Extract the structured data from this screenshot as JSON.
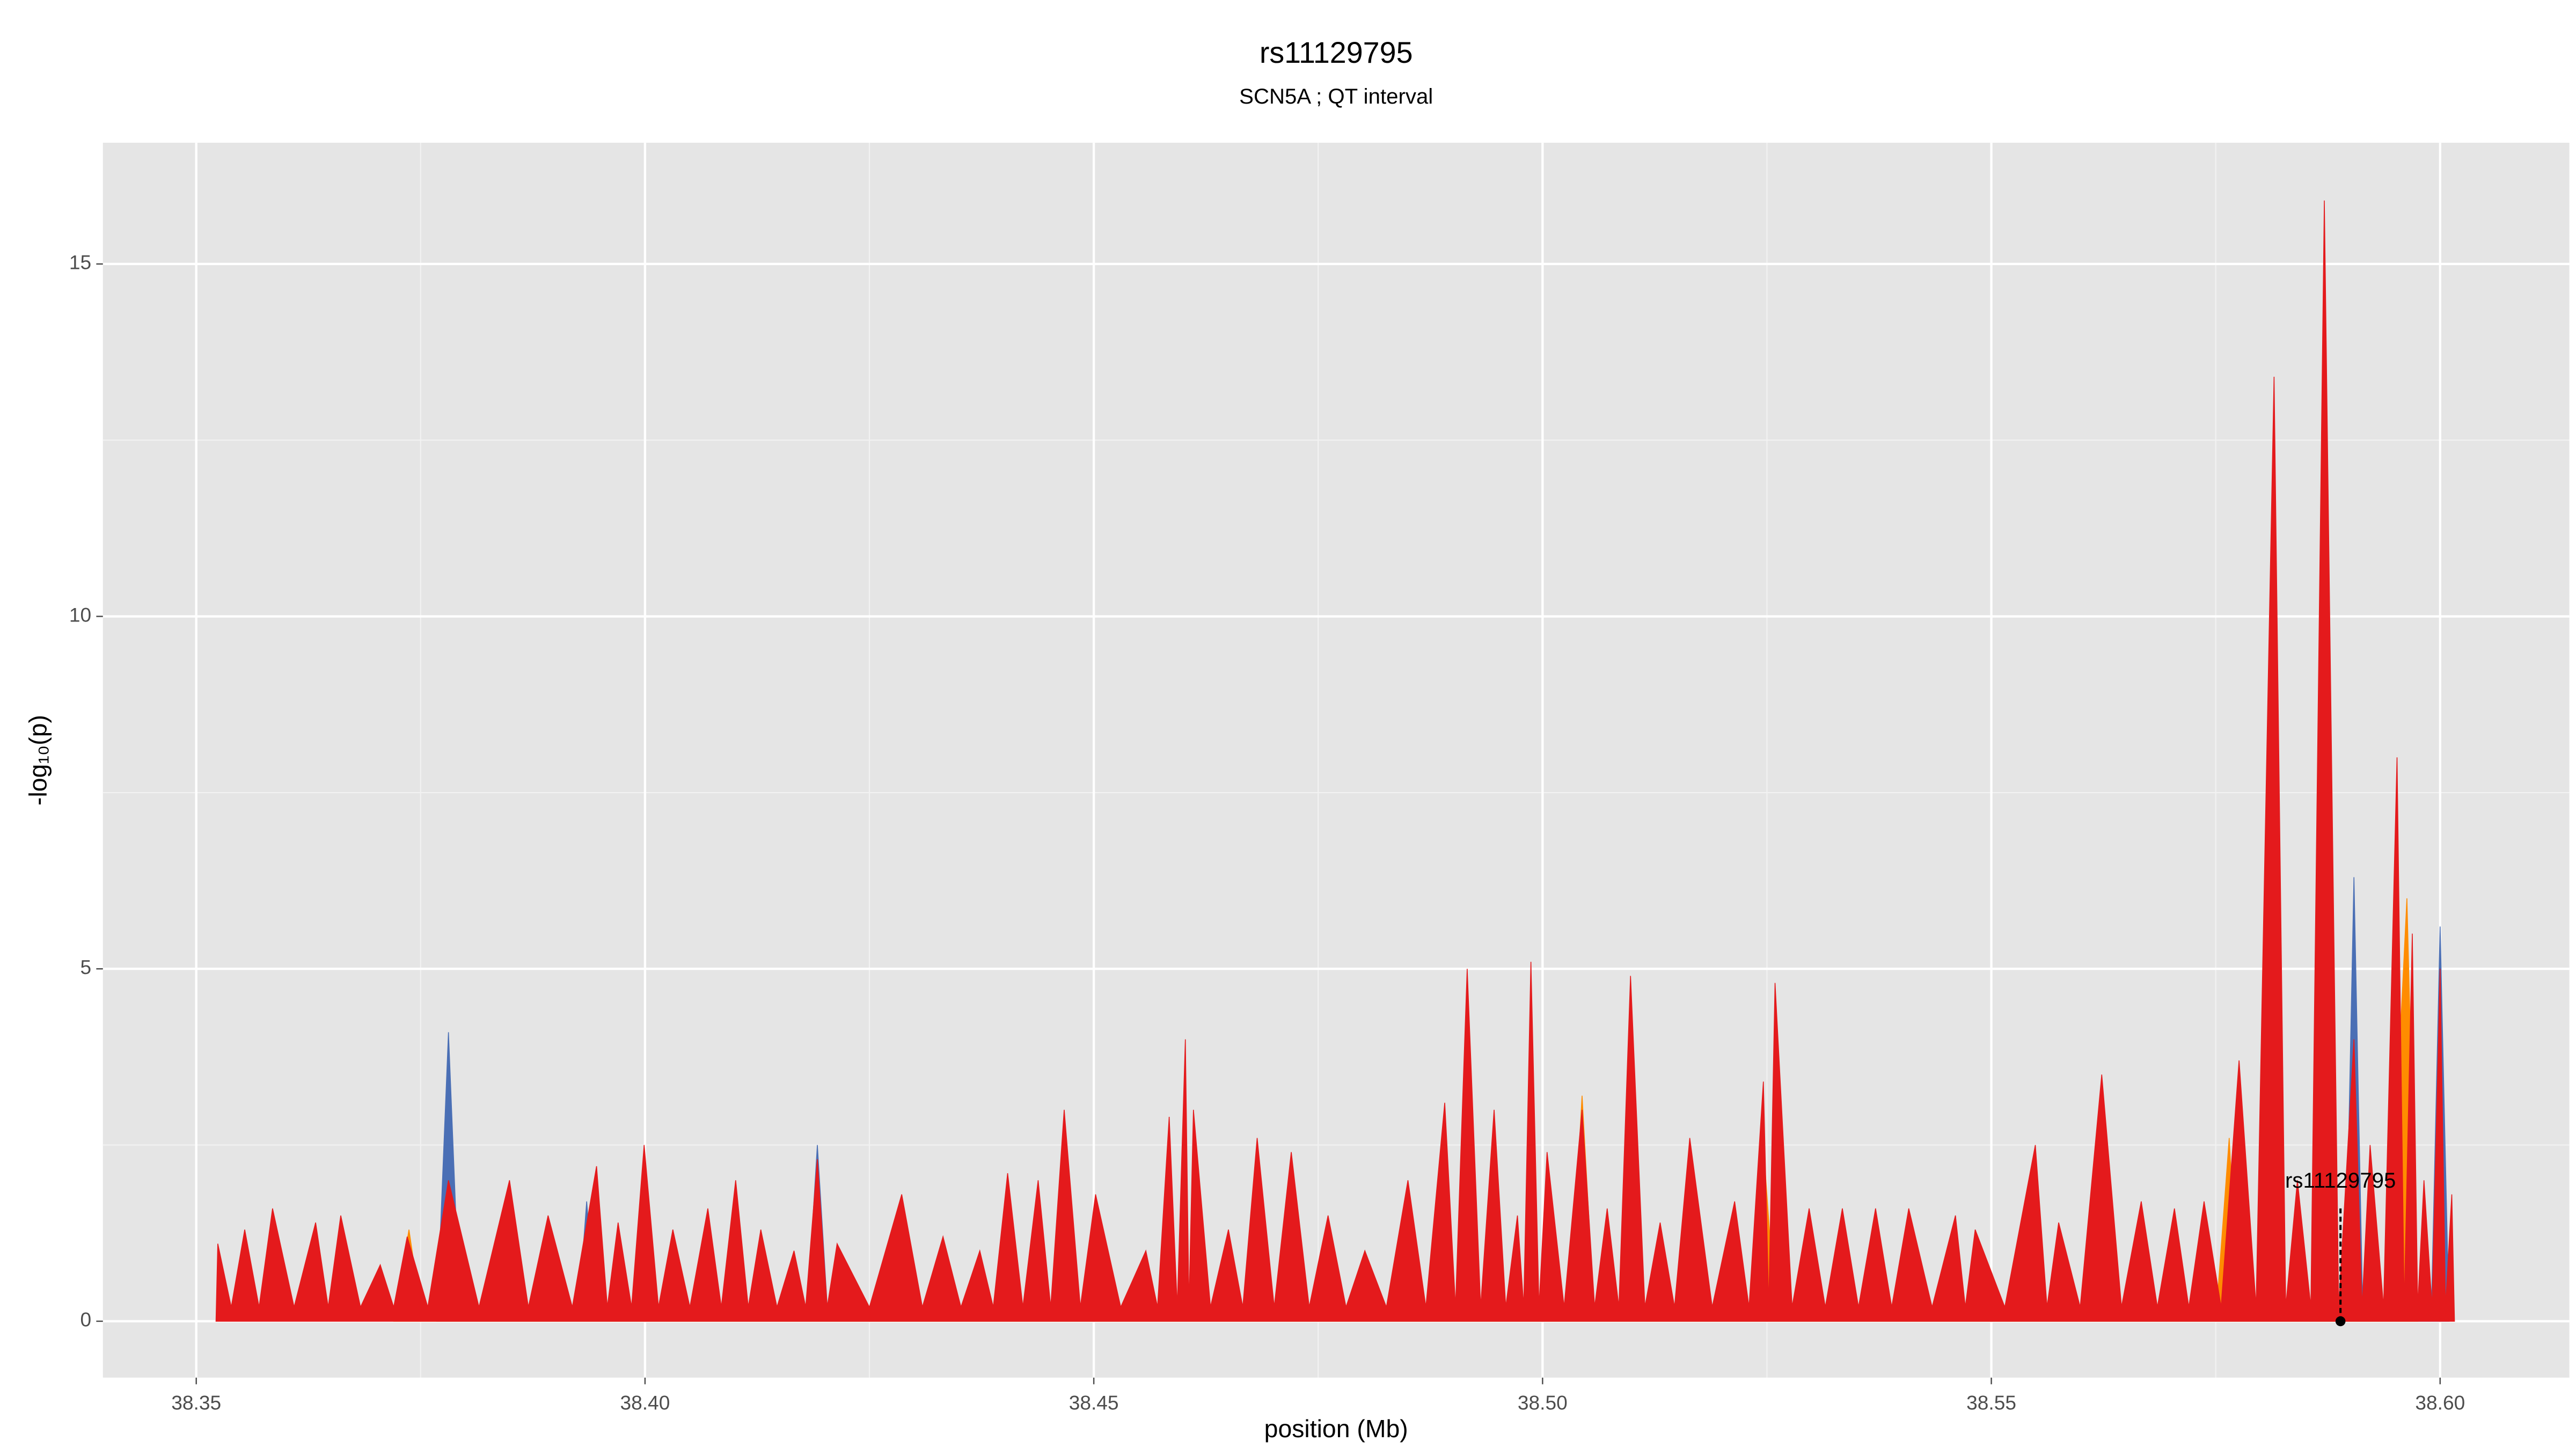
{
  "chart_data": {
    "type": "area",
    "title": "rs11129795",
    "subtitle": "SCN5A ; QT interval",
    "x_label": "position (Mb)",
    "y_label": "-log₁₀(p)",
    "xlim": [
      38.3396,
      38.6144
    ],
    "ylim": [
      -0.8,
      16.72
    ],
    "xticks": [
      {
        "value": 38.35,
        "label": "38.35"
      },
      {
        "value": 38.4,
        "label": "38.40"
      },
      {
        "value": 38.45,
        "label": "38.45"
      },
      {
        "value": 38.5,
        "label": "38.50"
      },
      {
        "value": 38.55,
        "label": "38.55"
      },
      {
        "value": 38.6,
        "label": "38.60"
      }
    ],
    "yticks": [
      0,
      5,
      10,
      15
    ],
    "x_minor_grid": [
      38.375,
      38.425,
      38.475,
      38.525,
      38.575
    ],
    "y_minor_grid": [
      2.5,
      7.5,
      12.5
    ],
    "grid": true,
    "background": "#e5e5e5",
    "series": [
      {
        "color": "#4a6fb5",
        "x": [
          38.3768,
          38.3781,
          38.3794,
          38.3925,
          38.3935,
          38.3945,
          38.418,
          38.4192,
          38.4204,
          38.545,
          38.546,
          38.547,
          38.5894,
          38.5904,
          38.5914,
          38.599,
          38.6,
          38.601
        ],
        "values": [
          0,
          4.1,
          0,
          0,
          1.7,
          0,
          0,
          2.5,
          0,
          0,
          1.5,
          0,
          0,
          6.3,
          0,
          0,
          5.6,
          0
        ]
      },
      {
        "color": "#ff8c00",
        "x": [
          38.372,
          38.3737,
          38.3752,
          38.3985,
          38.3999,
          38.4013,
          38.4272,
          38.4286,
          38.43,
          38.4453,
          38.4467,
          38.4481,
          38.503,
          38.5044,
          38.5058,
          38.5232,
          38.5246,
          38.526,
          38.575,
          38.5765,
          38.5776,
          38.594,
          38.5963,
          38.5975
        ],
        "values": [
          0,
          1.3,
          0,
          0,
          2.4,
          0,
          0,
          1.7,
          0,
          0,
          2.5,
          0,
          0,
          3.2,
          0,
          0,
          2.5,
          0,
          0,
          2.6,
          0,
          0,
          6.0,
          0
        ]
      },
      {
        "color": "#e41a1c",
        "x": [
          38.3522,
          38.3524,
          38.3539,
          38.3554,
          38.357,
          38.3585,
          38.3609,
          38.3633,
          38.3647,
          38.3661,
          38.3683,
          38.3705,
          38.372,
          38.3735,
          38.3758,
          38.3781,
          38.3815,
          38.3849,
          38.387,
          38.3892,
          38.3919,
          38.3946,
          38.3958,
          38.397,
          38.3985,
          38.3999,
          38.4015,
          38.4031,
          38.405,
          38.407,
          38.4085,
          38.4101,
          38.4115,
          38.4129,
          38.4147,
          38.4166,
          38.4179,
          38.4192,
          38.4203,
          38.4214,
          38.425,
          38.4286,
          38.4309,
          38.4332,
          38.4352,
          38.4373,
          38.4388,
          38.4404,
          38.4421,
          38.4438,
          38.4452,
          38.4467,
          38.4485,
          38.4502,
          38.453,
          38.4558,
          38.4571,
          38.4584,
          38.4593,
          38.4602,
          38.4606,
          38.4611,
          38.463,
          38.465,
          38.4666,
          38.4682,
          38.4701,
          38.472,
          38.474,
          38.4761,
          38.4781,
          38.4802,
          38.4826,
          38.485,
          38.487,
          38.4891,
          38.4903,
          38.4916,
          38.4931,
          38.4946,
          38.4959,
          38.4972,
          38.4979,
          38.4987,
          38.4996,
          38.5005,
          38.5024,
          38.5044,
          38.5058,
          38.5072,
          38.5085,
          38.5098,
          38.5114,
          38.5131,
          38.5147,
          38.5164,
          38.5189,
          38.5214,
          38.523,
          38.5246,
          38.5252,
          38.5259,
          38.5278,
          38.5297,
          38.5315,
          38.5334,
          38.5352,
          38.5371,
          38.5389,
          38.5408,
          38.5434,
          38.546,
          38.5471,
          38.5482,
          38.5515,
          38.5549,
          38.5562,
          38.5575,
          38.5599,
          38.5623,
          38.5645,
          38.5667,
          38.5685,
          38.5704,
          38.572,
          38.5737,
          38.5756,
          38.5776,
          38.5795,
          38.5815,
          38.5828,
          38.5841,
          38.5856,
          38.5871,
          38.5887,
          38.5904,
          38.5913,
          38.5922,
          38.5937,
          38.5952,
          38.596,
          38.5969,
          38.5975,
          38.5982,
          38.5991,
          38.6,
          38.6006,
          38.6013,
          38.6016
        ],
        "values": [
          0,
          1.1,
          0.2,
          1.3,
          0.2,
          1.6,
          0.2,
          1.4,
          0.2,
          1.5,
          0.2,
          0.8,
          0.2,
          1.2,
          0.2,
          2.0,
          0.2,
          2.0,
          0.2,
          1.5,
          0.2,
          2.2,
          0.2,
          1.4,
          0.2,
          2.5,
          0.2,
          1.3,
          0.2,
          1.6,
          0.2,
          2.0,
          0.2,
          1.3,
          0.2,
          1.0,
          0.2,
          2.3,
          0.2,
          1.1,
          0.2,
          1.8,
          0.2,
          1.2,
          0.2,
          1.0,
          0.2,
          2.1,
          0.2,
          2.0,
          0.2,
          3.0,
          0.2,
          1.8,
          0.2,
          1.0,
          0.2,
          2.9,
          0.2,
          4.0,
          0.2,
          3.0,
          0.2,
          1.3,
          0.2,
          2.6,
          0.2,
          2.4,
          0.2,
          1.5,
          0.2,
          1.0,
          0.2,
          2.0,
          0.2,
          3.1,
          0.2,
          5.0,
          0.2,
          3.0,
          0.2,
          1.5,
          0.2,
          5.1,
          0.2,
          2.4,
          0.2,
          3.0,
          0.2,
          1.6,
          0.2,
          4.9,
          0.2,
          1.4,
          0.2,
          2.6,
          0.2,
          1.7,
          0.2,
          3.4,
          0.2,
          4.8,
          0.2,
          1.6,
          0.2,
          1.6,
          0.2,
          1.6,
          0.2,
          1.6,
          0.2,
          1.5,
          0.2,
          1.3,
          0.2,
          2.5,
          0.2,
          1.4,
          0.2,
          3.5,
          0.2,
          1.7,
          0.2,
          1.6,
          0.2,
          1.7,
          0.2,
          3.7,
          0.2,
          13.4,
          0.2,
          2.0,
          0.2,
          15.9,
          0.2,
          4.0,
          0.2,
          2.5,
          0.2,
          8.0,
          0.2,
          5.5,
          0.2,
          2.0,
          0.2,
          5.0,
          0.2,
          1.8,
          0
        ]
      }
    ],
    "annotation": {
      "text": "rs11129795",
      "x": 38.5889,
      "y": 1.6
    }
  }
}
